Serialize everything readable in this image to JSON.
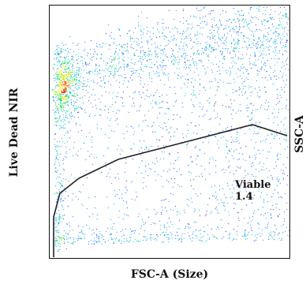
{
  "chart_data": {
    "type": "scatter",
    "title": "",
    "xlabel": "FSC-A (Size)",
    "ylabel": "Live Dead NIR",
    "ylabel_right": "SSC-A",
    "grid": false,
    "colormap": "density (blue to green to yellow to red)",
    "gate": {
      "name": "Viable",
      "value": "1.4",
      "stroke_color": "#222222"
    }
  },
  "colors": {
    "background": "#ffffff",
    "frame": "#111111",
    "density_low": "#0000ff",
    "density_high": "#ff0000"
  }
}
